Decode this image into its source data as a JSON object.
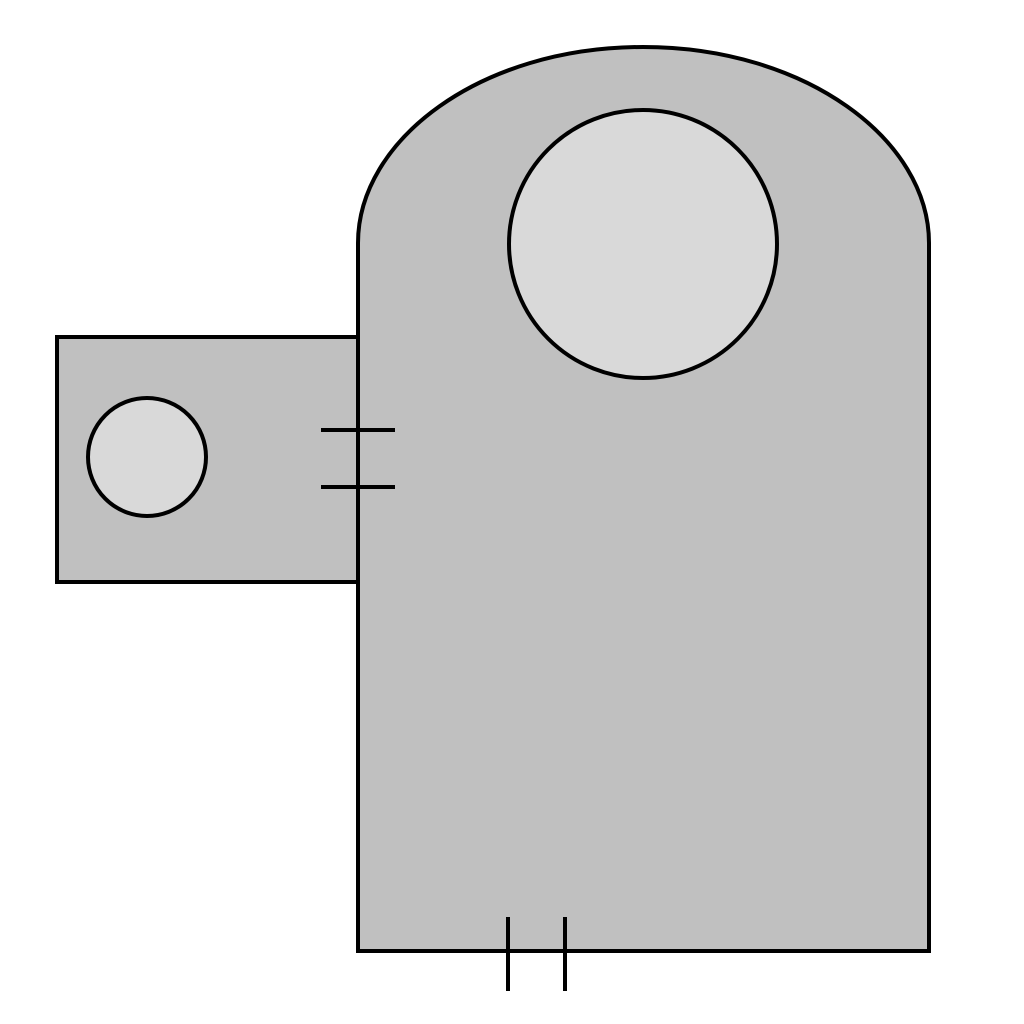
{
  "colors": {
    "background": "#ffffff",
    "body_fill": "#c0c0c0",
    "hole_fill": "#d9d9d9",
    "stroke": "#000000"
  },
  "shapes": [
    "main-body",
    "side-tab",
    "large-hole",
    "small-hole"
  ],
  "dimension_marks": [
    "tab-height-marks",
    "bottom-width-marks"
  ]
}
